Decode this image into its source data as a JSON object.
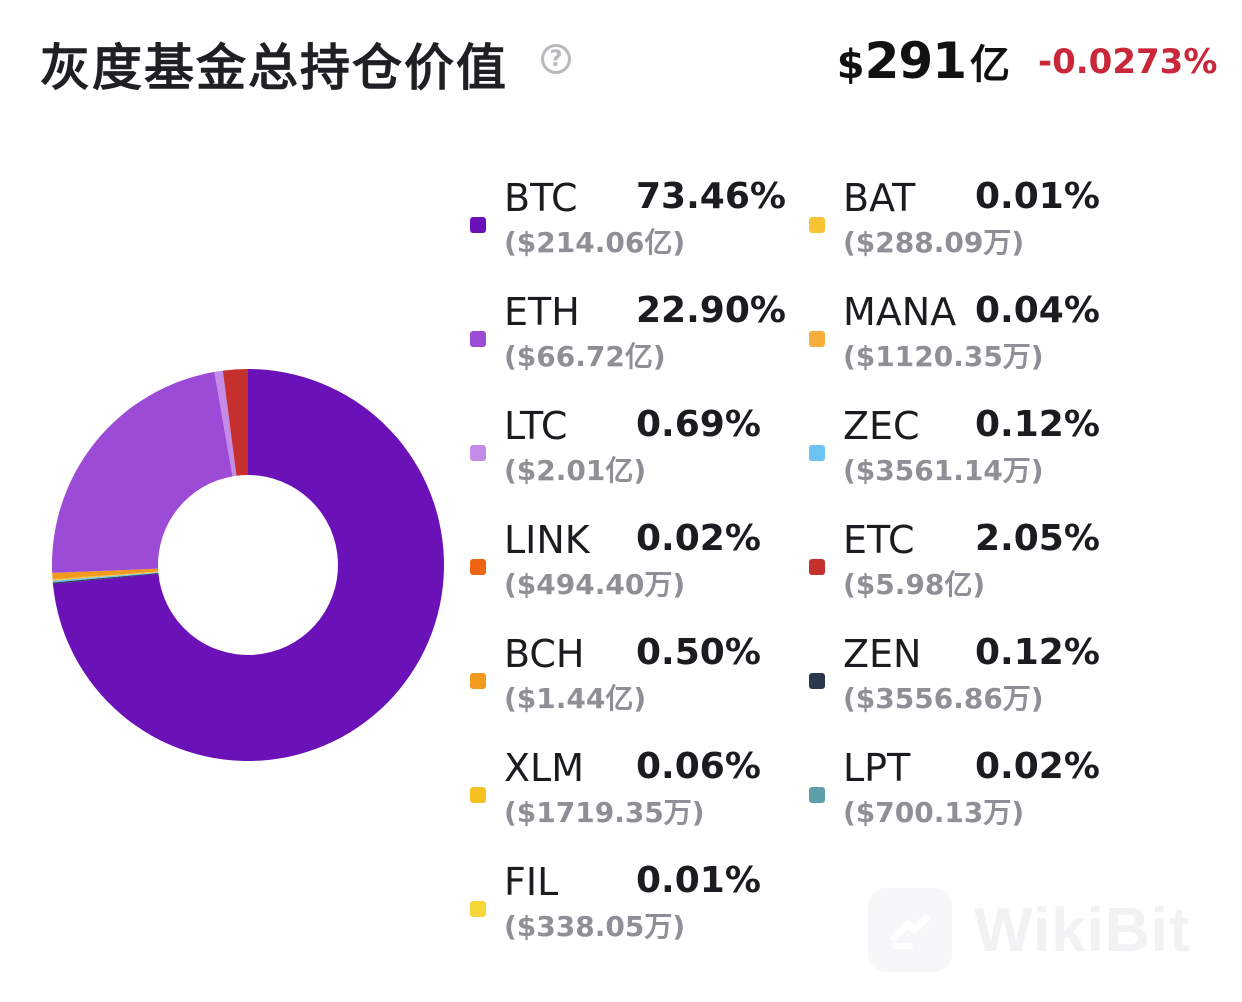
{
  "header": {
    "title": "灰度基金总持仓价值",
    "help_icon": "?",
    "total_currency": "$",
    "total_value": "291",
    "total_unit": "亿",
    "change": "-0.0273%"
  },
  "colors": {
    "change_negative": "#c8283a"
  },
  "chart_data": {
    "type": "pie",
    "donut": true,
    "series": [
      {
        "name": "BTC",
        "percent": 73.46,
        "label": "73.46%",
        "amount": "($214.06亿)",
        "color": "#6a11b8"
      },
      {
        "name": "ETH",
        "percent": 22.9,
        "label": "22.90%",
        "amount": "($66.72亿)",
        "color": "#9b4bd6"
      },
      {
        "name": "LTC",
        "percent": 0.69,
        "label": "0.69%",
        "amount": "($2.01亿)",
        "color": "#c48be8"
      },
      {
        "name": "LINK",
        "percent": 0.02,
        "label": "0.02%",
        "amount": "($494.40万)",
        "color": "#ee6412"
      },
      {
        "name": "BCH",
        "percent": 0.5,
        "label": "0.50%",
        "amount": "($1.44亿)",
        "color": "#f19a1e"
      },
      {
        "name": "XLM",
        "percent": 0.06,
        "label": "0.06%",
        "amount": "($1719.35万)",
        "color": "#f5c021"
      },
      {
        "name": "FIL",
        "percent": 0.01,
        "label": "0.01%",
        "amount": "($338.05万)",
        "color": "#f7d63a"
      },
      {
        "name": "BAT",
        "percent": 0.01,
        "label": "0.01%",
        "amount": "($288.09万)",
        "color": "#f8c334"
      },
      {
        "name": "MANA",
        "percent": 0.04,
        "label": "0.04%",
        "amount": "($1120.35万)",
        "color": "#f6ad3c"
      },
      {
        "name": "ZEC",
        "percent": 0.12,
        "label": "0.12%",
        "amount": "($3561.14万)",
        "color": "#6cc3f4"
      },
      {
        "name": "ETC",
        "percent": 2.05,
        "label": "2.05%",
        "amount": "($5.98亿)",
        "color": "#c5302e"
      },
      {
        "name": "ZEN",
        "percent": 0.12,
        "label": "0.12%",
        "amount": "($3556.86万)",
        "color": "#2a3a4c"
      },
      {
        "name": "LPT",
        "percent": 0.02,
        "label": "0.02%",
        "amount": "($700.13万)",
        "color": "#5e9ea9"
      }
    ]
  },
  "watermark": {
    "text": "WikiBit"
  }
}
